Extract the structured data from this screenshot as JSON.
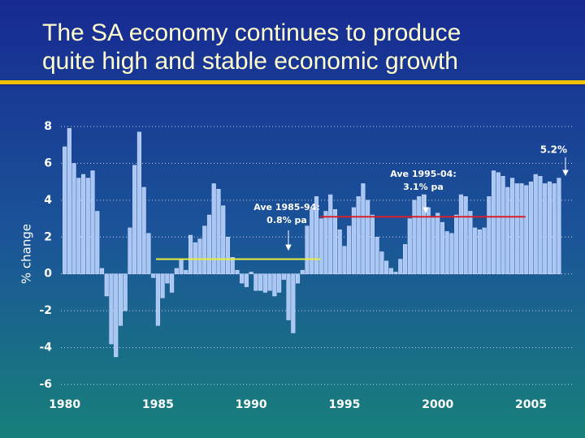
{
  "chart_data": {
    "type": "bar",
    "title": [
      "The SA economy continues to produce",
      "quite high and stable economic growth"
    ],
    "ylabel": "% change",
    "color": "#a9c6f5",
    "grid": true,
    "ylim": [
      -6,
      8
    ],
    "yticks": [
      8,
      6,
      4,
      2,
      0,
      -2,
      -4,
      -6
    ],
    "xlim": [
      1979.8,
      2007.2
    ],
    "xticks": [
      1980,
      1985,
      1990,
      1995,
      2000,
      2005
    ],
    "x": [
      1980,
      1980.25,
      1980.5,
      1980.75,
      1981,
      1981.25,
      1981.5,
      1981.75,
      1982,
      1982.25,
      1982.5,
      1982.75,
      1983,
      1983.25,
      1983.5,
      1983.75,
      1984,
      1984.25,
      1984.5,
      1984.75,
      1985,
      1985.25,
      1985.5,
      1985.75,
      1986,
      1986.25,
      1986.5,
      1986.75,
      1987,
      1987.25,
      1987.5,
      1987.75,
      1988,
      1988.25,
      1988.5,
      1988.75,
      1989,
      1989.25,
      1989.5,
      1989.75,
      1990,
      1990.25,
      1990.5,
      1990.75,
      1991,
      1991.25,
      1991.5,
      1991.75,
      1992,
      1992.25,
      1992.5,
      1992.75,
      1993,
      1993.25,
      1993.5,
      1993.75,
      1994,
      1994.25,
      1994.5,
      1994.75,
      1995,
      1995.25,
      1995.5,
      1995.75,
      1996,
      1996.25,
      1996.5,
      1996.75,
      1997,
      1997.25,
      1997.5,
      1997.75,
      1998,
      1998.25,
      1998.5,
      1998.75,
      1999,
      1999.25,
      1999.5,
      1999.75,
      2000,
      2000.25,
      2000.5,
      2000.75,
      2001,
      2001.25,
      2001.5,
      2001.75,
      2002,
      2002.25,
      2002.5,
      2002.75,
      2003,
      2003.25,
      2003.5,
      2003.75,
      2004,
      2004.25,
      2004.5,
      2004.75,
      2005,
      2005.25,
      2005.5,
      2005.75,
      2006,
      2006.25,
      2006.5
    ],
    "values": [
      6.9,
      7.9,
      6.0,
      5.2,
      5.4,
      5.2,
      5.6,
      3.4,
      0.3,
      -1.2,
      -3.8,
      -4.5,
      -2.8,
      -2.0,
      2.5,
      5.9,
      7.7,
      4.7,
      2.2,
      -0.2,
      -2.8,
      -1.3,
      -0.5,
      -1.0,
      0.3,
      0.8,
      0.2,
      2.1,
      1.7,
      1.9,
      2.6,
      3.2,
      4.9,
      4.6,
      3.7,
      2.0,
      0.9,
      0.2,
      -0.5,
      -0.7,
      0.1,
      -0.9,
      -0.9,
      -1.0,
      -0.9,
      -1.2,
      -1.0,
      -0.3,
      -2.5,
      -3.2,
      -0.5,
      0.2,
      2.6,
      3.5,
      4.2,
      3.0,
      3.4,
      4.3,
      3.5,
      2.4,
      1.5,
      2.6,
      3.6,
      4.2,
      4.9,
      4.0,
      3.2,
      2.0,
      1.2,
      0.7,
      0.3,
      0.1,
      0.8,
      1.6,
      3.0,
      4.0,
      4.2,
      4.3,
      3.6,
      3.1,
      3.3,
      2.8,
      2.3,
      2.2,
      3.2,
      4.3,
      4.2,
      3.4,
      2.5,
      2.4,
      2.5,
      4.2,
      5.6,
      5.5,
      5.3,
      4.7,
      5.2,
      4.9,
      4.9,
      4.8,
      5.0,
      5.4,
      5.3,
      4.9,
      5.0,
      4.9,
      5.2
    ],
    "value_labels": {
      "106": "5.2%"
    },
    "average_lines": [
      {
        "label": "Ave 1985-94:",
        "sublabel": "0.8% pa",
        "value": 0.8,
        "x_range": [
          1984.9,
          1993.7
        ],
        "color": "#e6ee3a"
      },
      {
        "label": "Ave 1995-04:",
        "sublabel": "3.1% pa",
        "value": 3.1,
        "x_range": [
          1993.7,
          2004.7
        ],
        "color": "#d8202a"
      }
    ]
  }
}
